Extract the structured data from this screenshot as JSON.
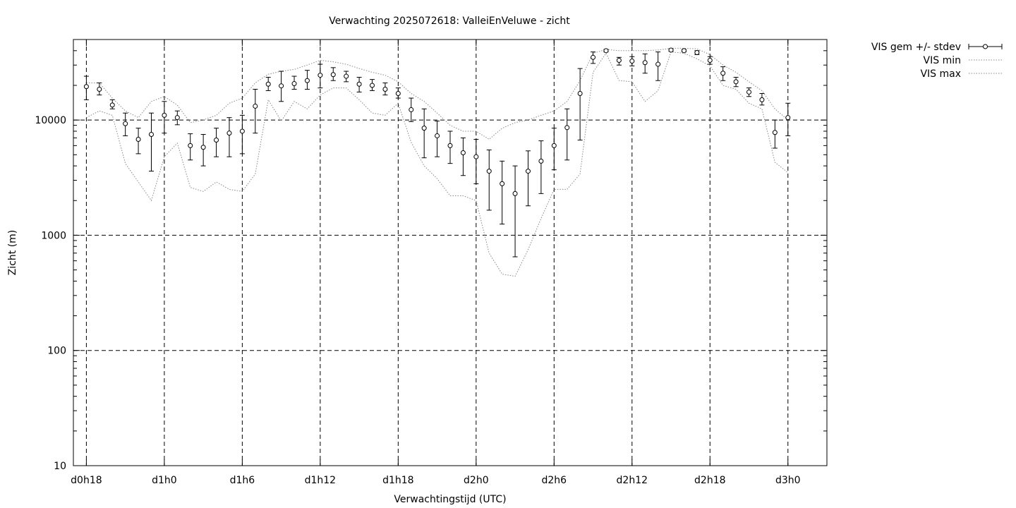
{
  "chart_data": {
    "type": "line",
    "title": "Verwachting 2025072618: ValleiEnVeluwe - zicht",
    "xlabel": "Verwachtingstijd (UTC)",
    "ylabel": "Zicht (m)",
    "y_scale": "log",
    "ylim": [
      10,
      50000
    ],
    "xlim": [
      -1,
      57
    ],
    "grid": true,
    "legend_position": "top-right, outside",
    "x_ticks": [
      {
        "x": 0,
        "label": "d0h18"
      },
      {
        "x": 6,
        "label": "d1h0"
      },
      {
        "x": 12,
        "label": "d1h6"
      },
      {
        "x": 18,
        "label": "d1h12"
      },
      {
        "x": 24,
        "label": "d1h18"
      },
      {
        "x": 30,
        "label": "d2h0"
      },
      {
        "x": 36,
        "label": "d2h6"
      },
      {
        "x": 42,
        "label": "d2h12"
      },
      {
        "x": 48,
        "label": "d2h18"
      },
      {
        "x": 54,
        "label": "d3h0"
      }
    ],
    "y_ticks": [
      {
        "y": 10,
        "label": "10"
      },
      {
        "y": 100,
        "label": "100"
      },
      {
        "y": 1000,
        "label": "1000"
      },
      {
        "y": 10000,
        "label": "10000"
      }
    ],
    "series": [
      {
        "name": "VIS gem +/- stdev",
        "x": [
          0,
          1,
          2,
          3,
          4,
          5,
          6,
          7,
          8,
          9,
          10,
          11,
          12,
          13,
          14,
          15,
          16,
          17,
          18,
          19,
          20,
          21,
          22,
          23,
          24,
          25,
          26,
          27,
          28,
          29,
          30,
          31,
          32,
          33,
          34,
          35,
          36,
          37,
          38,
          39,
          40,
          41,
          42,
          43,
          44,
          45,
          46,
          47,
          48,
          49,
          50,
          51,
          52,
          53,
          54
        ],
        "mean": [
          19500,
          18500,
          13500,
          9300,
          6800,
          7500,
          11000,
          10500,
          6000,
          5800,
          6700,
          7700,
          8000,
          13200,
          20500,
          19800,
          20700,
          22000,
          24500,
          24800,
          24000,
          20500,
          20000,
          18500,
          17000,
          12300,
          8500,
          7300,
          6000,
          5200,
          4800,
          3600,
          2800,
          2300,
          3600,
          4400,
          6000,
          8600,
          17000,
          35000,
          40000,
          33000,
          32500,
          31500,
          30500,
          40500,
          40000,
          38500,
          33000,
          25500,
          21500,
          17500,
          15000,
          7800,
          10500
        ],
        "low": [
          15000,
          16500,
          12500,
          7300,
          5100,
          3600,
          7700,
          9100,
          4500,
          4000,
          4800,
          4800,
          5100,
          7700,
          18000,
          14500,
          18500,
          18500,
          19000,
          22000,
          21500,
          17500,
          18000,
          16500,
          15500,
          9700,
          4700,
          4800,
          4200,
          3300,
          2800,
          1650,
          1250,
          650,
          1800,
          2300,
          3700,
          4500,
          6700,
          31000,
          39000,
          30000,
          29500,
          25500,
          22000,
          39500,
          39000,
          37000,
          30500,
          22000,
          19500,
          16000,
          13500,
          5700,
          7300
        ],
        "high": [
          24000,
          21000,
          15000,
          11500,
          8500,
          11500,
          14500,
          12000,
          7600,
          7500,
          8500,
          10500,
          11000,
          18500,
          23500,
          26500,
          24000,
          27000,
          30500,
          28500,
          26500,
          23500,
          22500,
          21000,
          19000,
          15500,
          12500,
          9800,
          8000,
          7000,
          6800,
          5500,
          4400,
          4000,
          5400,
          6600,
          8500,
          12500,
          28000,
          39000,
          41000,
          35000,
          35500,
          37500,
          39000,
          41500,
          41000,
          40000,
          35500,
          29000,
          23500,
          19000,
          17000,
          10000,
          14000
        ]
      },
      {
        "name": "VIS min",
        "x": [
          0,
          1,
          2,
          3,
          4,
          5,
          6,
          7,
          8,
          9,
          10,
          11,
          12,
          13,
          14,
          15,
          16,
          17,
          18,
          19,
          20,
          21,
          22,
          23,
          24,
          25,
          26,
          27,
          28,
          29,
          30,
          31,
          32,
          33,
          34,
          35,
          36,
          37,
          38,
          39,
          40,
          41,
          42,
          43,
          44,
          45,
          46,
          47,
          48,
          49,
          50,
          51,
          52,
          53,
          54
        ],
        "values": [
          10500,
          12000,
          11000,
          4200,
          2900,
          2000,
          4800,
          6300,
          2600,
          2400,
          2900,
          2500,
          2400,
          3400,
          15000,
          9800,
          14500,
          12500,
          16500,
          19000,
          19000,
          15000,
          11500,
          11000,
          14000,
          6400,
          4000,
          3100,
          2200,
          2200,
          2000,
          700,
          460,
          440,
          750,
          1400,
          2500,
          2500,
          3400,
          26000,
          38000,
          22000,
          21500,
          14500,
          18000,
          39000,
          38000,
          34000,
          29500,
          20000,
          18500,
          14000,
          12500,
          4300,
          3500
        ]
      },
      {
        "name": "VIS max",
        "x": [
          0,
          1,
          2,
          3,
          4,
          5,
          6,
          7,
          8,
          9,
          10,
          11,
          12,
          13,
          14,
          15,
          16,
          17,
          18,
          19,
          20,
          21,
          22,
          23,
          24,
          25,
          26,
          27,
          28,
          29,
          30,
          31,
          32,
          33,
          34,
          35,
          36,
          37,
          38,
          39,
          40,
          41,
          42,
          43,
          44,
          45,
          46,
          47,
          48,
          49,
          50,
          51,
          52,
          53,
          54
        ],
        "values": [
          21000,
          21000,
          15500,
          12000,
          10500,
          14500,
          16000,
          13500,
          9500,
          10000,
          11000,
          14000,
          15500,
          21000,
          25000,
          26500,
          27500,
          30000,
          33000,
          32000,
          30500,
          28000,
          26000,
          24500,
          21500,
          17000,
          14500,
          11500,
          9000,
          8000,
          8000,
          6800,
          8500,
          9500,
          10000,
          11000,
          12000,
          14500,
          22000,
          38000,
          41000,
          40000,
          40000,
          40000,
          40500,
          42000,
          42000,
          41500,
          37000,
          30000,
          26000,
          21500,
          18000,
          12500,
          10000
        ]
      }
    ]
  }
}
